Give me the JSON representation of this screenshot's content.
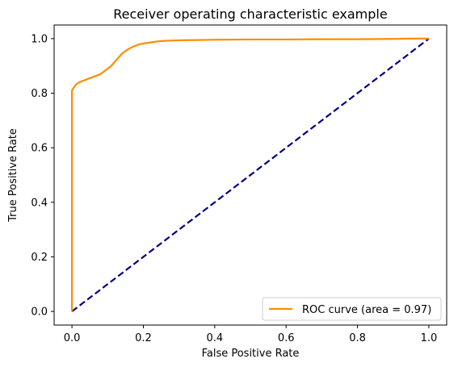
{
  "chart_data": {
    "type": "line",
    "title": "Receiver operating characteristic example",
    "xlabel": "False Positive Rate",
    "ylabel": "True Positive Rate",
    "xlim": [
      -0.05,
      1.05
    ],
    "ylim": [
      -0.05,
      1.05
    ],
    "xticks": [
      "0.0",
      "0.2",
      "0.4",
      "0.6",
      "0.8",
      "1.0"
    ],
    "yticks": [
      "0.0",
      "0.2",
      "0.4",
      "0.6",
      "0.8",
      "1.0"
    ],
    "grid": false,
    "legend_position": "lower right",
    "series": [
      {
        "name": "ROC curve (area = 0.97)",
        "color": "#ff8c00",
        "style": "solid",
        "x": [
          0.0,
          0.0,
          0.0,
          0.005,
          0.01,
          0.015,
          0.02,
          0.03,
          0.04,
          0.05,
          0.06,
          0.07,
          0.08,
          0.09,
          0.1,
          0.11,
          0.12,
          0.13,
          0.14,
          0.15,
          0.16,
          0.17,
          0.18,
          0.19,
          0.2,
          0.22,
          0.24,
          0.26,
          0.3,
          0.35,
          0.4,
          0.5,
          0.6,
          0.7,
          0.8,
          0.9,
          0.95,
          1.0
        ],
        "y": [
          0.0,
          0.8,
          0.81,
          0.82,
          0.83,
          0.835,
          0.84,
          0.845,
          0.85,
          0.855,
          0.86,
          0.865,
          0.87,
          0.88,
          0.89,
          0.9,
          0.915,
          0.93,
          0.945,
          0.955,
          0.963,
          0.97,
          0.975,
          0.98,
          0.982,
          0.986,
          0.99,
          0.992,
          0.994,
          0.995,
          0.996,
          0.997,
          0.997,
          0.998,
          0.998,
          0.999,
          1.0,
          1.0
        ]
      },
      {
        "name": "",
        "color": "#000080",
        "style": "dashed",
        "x": [
          0.0,
          1.0
        ],
        "y": [
          0.0,
          1.0
        ]
      }
    ]
  }
}
